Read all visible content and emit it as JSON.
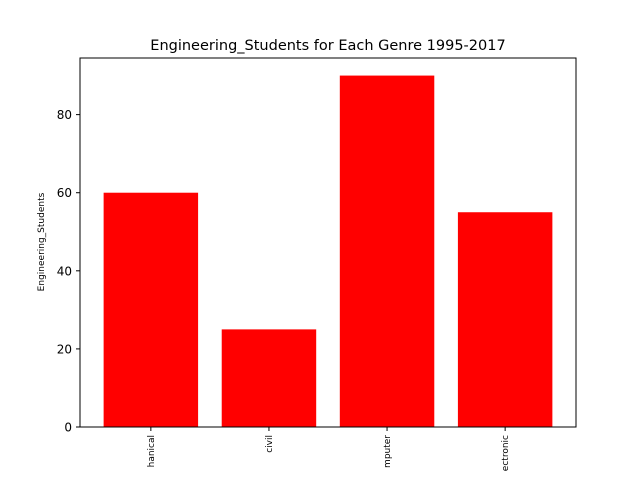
{
  "chart_data": {
    "type": "bar",
    "title": "Engineering_Students for Each Genre 1995-2017",
    "xlabel": "",
    "ylabel": "Engineering_Students",
    "categories": [
      "hanical",
      "civil",
      "mputer",
      "ectronic"
    ],
    "values": [
      60,
      25,
      90,
      55
    ],
    "ylim": [
      0,
      94.5
    ],
    "yticks": [
      0,
      20,
      40,
      60,
      80
    ],
    "bar_color": "#ff0000",
    "grid": false,
    "legend": "none"
  }
}
